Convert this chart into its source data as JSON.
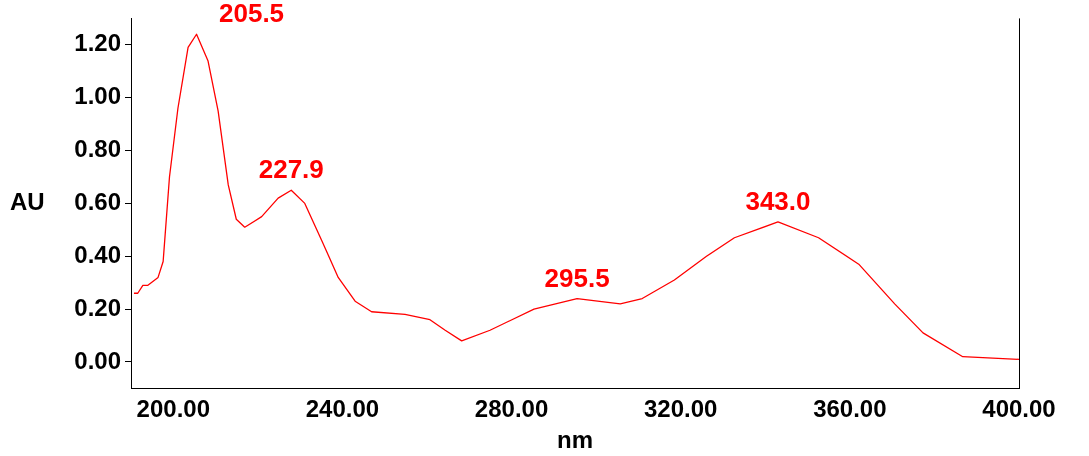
{
  "chart_data": {
    "type": "line",
    "xlabel": "nm",
    "ylabel": "AU",
    "xlim": [
      190,
      400
    ],
    "xticks": [
      {
        "value": 200,
        "label": "200.00"
      },
      {
        "value": 240,
        "label": "240.00"
      },
      {
        "value": 280,
        "label": "280.00"
      },
      {
        "value": 320,
        "label": "320.00"
      },
      {
        "value": 360,
        "label": "360.00"
      },
      {
        "value": 400,
        "label": "400.00"
      }
    ],
    "ylim": [
      -0.1,
      1.3
    ],
    "yticks": [
      {
        "value": 0,
        "label": "0.00"
      },
      {
        "value": 0.2,
        "label": "0.20"
      },
      {
        "value": 0.4,
        "label": "0.40"
      },
      {
        "value": 0.6,
        "label": "0.60"
      },
      {
        "value": 0.8,
        "label": "0.80"
      },
      {
        "value": 1,
        "label": "1.00"
      },
      {
        "value": 1.2,
        "label": "1.20"
      }
    ],
    "grid": false,
    "legend": false,
    "marker": "none",
    "line_style": "solid",
    "series": [
      {
        "color": "#ff0000",
        "x": [
          190.7,
          191.6,
          192.8,
          194.0,
          196.4,
          197.6,
          199.1,
          201.1,
          203.5,
          205.5,
          208.2,
          210.6,
          213.0,
          214.9,
          216.9,
          220.9,
          224.8,
          227.9,
          231.1,
          235.1,
          239.0,
          243.0,
          246.9,
          254.8,
          260.7,
          264.3,
          268.2,
          274.9,
          285.3,
          295.5,
          305.7,
          310.9,
          318.5,
          326.1,
          332.7,
          343.0,
          352.6,
          362.1,
          370.6,
          377.3,
          386.7,
          400
        ],
        "values": [
          0.26,
          0.26,
          0.29,
          0.29,
          0.32,
          0.38,
          0.7,
          0.96,
          1.19,
          1.24,
          1.14,
          0.95,
          0.67,
          0.54,
          0.51,
          0.55,
          0.62,
          0.65,
          0.6,
          0.46,
          0.32,
          0.23,
          0.19,
          0.18,
          0.16,
          0.12,
          0.08,
          0.12,
          0.2,
          0.24,
          0.22,
          0.24,
          0.31,
          0.4,
          0.47,
          0.53,
          0.47,
          0.37,
          0.22,
          0.11,
          0.02,
          0.01
        ]
      }
    ],
    "annotations": [
      {
        "text": "205.5",
        "x": 205.5,
        "y": 1.24
      },
      {
        "text": "227.9",
        "x": 227.9,
        "y": 0.65
      },
      {
        "text": "295.5",
        "x": 295.5,
        "y": 0.24
      },
      {
        "text": "343.0",
        "x": 343.0,
        "y": 0.53
      }
    ]
  }
}
